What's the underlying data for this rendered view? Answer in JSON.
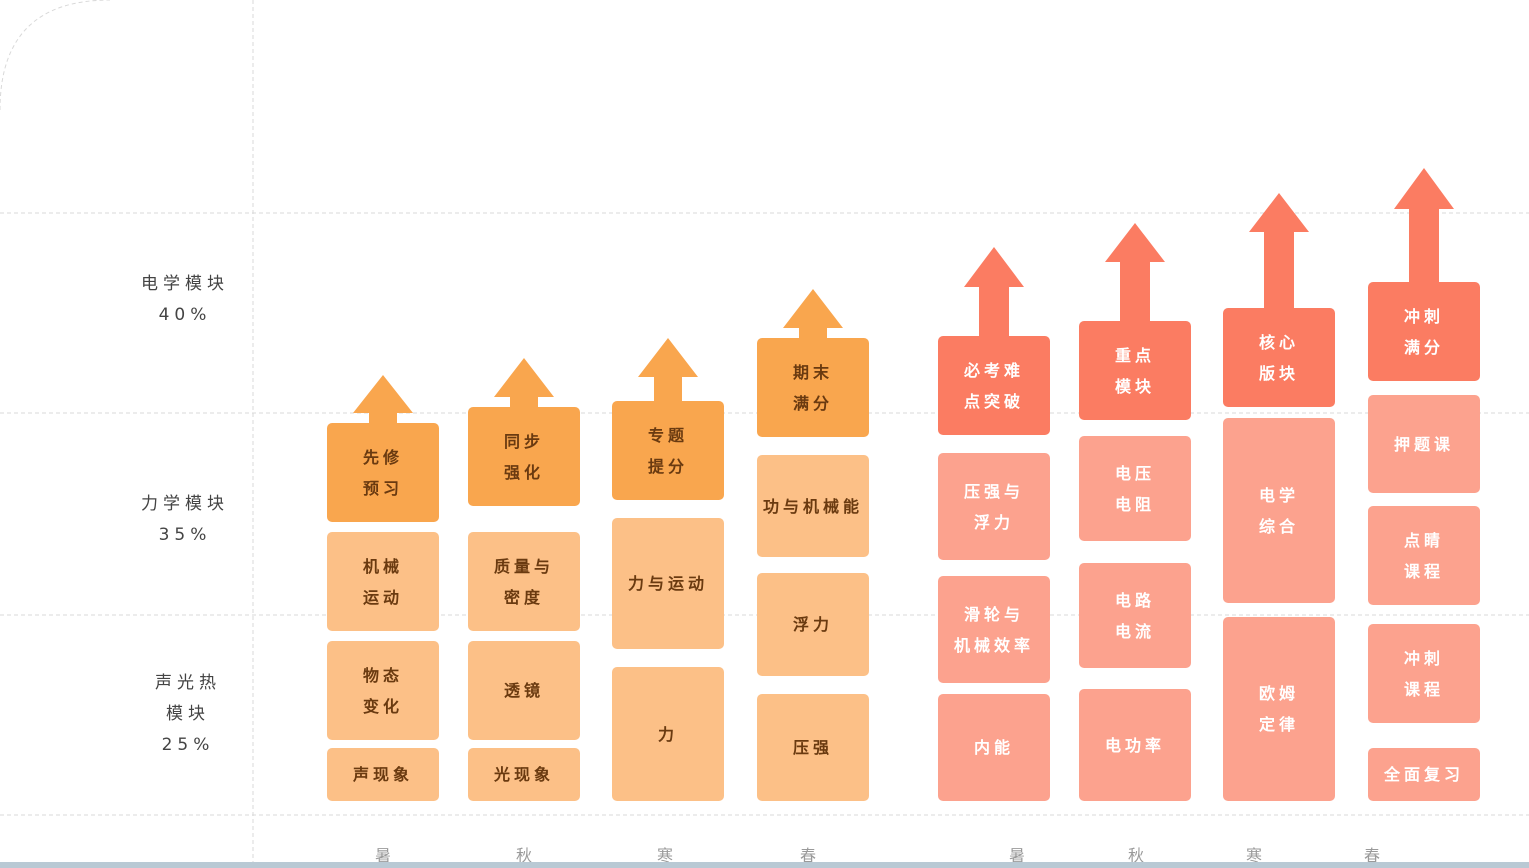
{
  "colors": {
    "orange_dark": "#f9a64e",
    "orange_light": "#fcc087",
    "coral_dark": "#fb7c62",
    "coral_light": "#fca28e",
    "text_dark_bg": "#6a3a10",
    "text_coral_bg": "#ffffff",
    "grid": "#d9d9d9"
  },
  "modules": [
    {
      "lines": [
        "电学模块",
        "40%"
      ]
    },
    {
      "lines": [
        "力学模块",
        "35%"
      ]
    },
    {
      "lines": [
        "声光热",
        "模块",
        "25%"
      ]
    }
  ],
  "seasons": [
    "暑",
    "秋",
    "寒",
    "春",
    "暑",
    "秋",
    "寒",
    "春"
  ],
  "columns": [
    {
      "group": "year1",
      "header": [
        "先修",
        "预习"
      ],
      "blocks": [
        [
          "机械",
          "运动"
        ],
        [
          "物态",
          "变化"
        ],
        [
          "声现象"
        ]
      ]
    },
    {
      "group": "year1",
      "header": [
        "同步",
        "强化"
      ],
      "blocks": [
        [
          "质量与",
          "密度"
        ],
        [
          "透镜"
        ],
        [
          "光现象"
        ]
      ]
    },
    {
      "group": "year1",
      "header": [
        "专题",
        "提分"
      ],
      "blocks": [
        [
          "力与运动"
        ],
        [
          "力"
        ]
      ]
    },
    {
      "group": "year1",
      "header": [
        "期末",
        "满分"
      ],
      "blocks": [
        [
          "功与机械能"
        ],
        [
          "浮力"
        ],
        [
          "压强"
        ]
      ]
    },
    {
      "group": "year2",
      "header": [
        "必考难",
        "点突破"
      ],
      "blocks": [
        [
          "压强与",
          "浮力"
        ],
        [
          "滑轮与",
          "机械效率"
        ],
        [
          "内能"
        ]
      ]
    },
    {
      "group": "year2",
      "header": [
        "重点",
        "模块"
      ],
      "blocks": [
        [
          "电压",
          "电阻"
        ],
        [
          "电路",
          "电流"
        ],
        [
          "电功率"
        ]
      ]
    },
    {
      "group": "year2",
      "header": [
        "核心",
        "版块"
      ],
      "blocks": [
        [
          "电学",
          "综合"
        ],
        [
          "欧姆",
          "定律"
        ]
      ]
    },
    {
      "group": "year2",
      "header": [
        "冲刺",
        "满分"
      ],
      "blocks": [
        [
          "押题课"
        ],
        [
          "点睛",
          "课程"
        ],
        [
          "冲刺",
          "课程"
        ],
        [
          "全面复习"
        ]
      ]
    }
  ]
}
